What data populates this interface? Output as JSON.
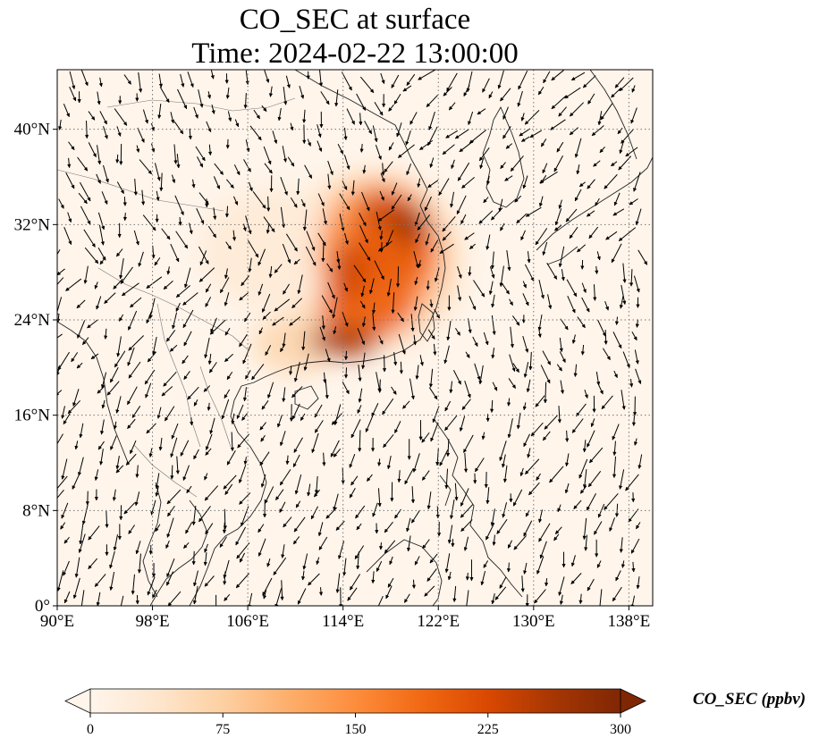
{
  "chart_data": {
    "type": "heatmap",
    "title_line1": "CO_SEC at surface",
    "title_line2": "Time: 2024-02-22 13:00:00",
    "variable": "CO_SEC",
    "units": "ppbv",
    "colorbar_label": "CO_SEC (ppbv)",
    "colorbar_extend": "both",
    "colormap": [
      "#fff5eb",
      "#fee6ce",
      "#fdd0a2",
      "#fdae6b",
      "#fd8d3c",
      "#f16913",
      "#d94801",
      "#a63603",
      "#7f2704"
    ],
    "vmin": 0,
    "vmax": 300,
    "colorbar_ticks": [
      {
        "value": 0,
        "label": "0"
      },
      {
        "value": 75,
        "label": "75"
      },
      {
        "value": 150,
        "label": "150"
      },
      {
        "value": 225,
        "label": "225"
      },
      {
        "value": 300,
        "label": "300"
      }
    ],
    "lon_range": [
      90,
      140
    ],
    "lat_range": [
      0,
      45
    ],
    "x_ticks": [
      {
        "value": 90,
        "label": "90°E"
      },
      {
        "value": 98,
        "label": "98°E"
      },
      {
        "value": 106,
        "label": "106°E"
      },
      {
        "value": 114,
        "label": "114°E"
      },
      {
        "value": 122,
        "label": "122°E"
      },
      {
        "value": 130,
        "label": "130°E"
      },
      {
        "value": 138,
        "label": "138°E"
      }
    ],
    "y_ticks": [
      {
        "value": 0,
        "label": "0°"
      },
      {
        "value": 8,
        "label": "8°N"
      },
      {
        "value": 16,
        "label": "16°N"
      },
      {
        "value": 24,
        "label": "24°N"
      },
      {
        "value": 32,
        "label": "32°N"
      },
      {
        "value": 40,
        "label": "40°N"
      }
    ],
    "gridlines": "dotted",
    "plume_regions": [
      {
        "lon": 116.5,
        "lat": 29.0,
        "rlon": 7.5,
        "rlat": 7.5,
        "value": 50
      },
      {
        "lon": 108.0,
        "lat": 30.0,
        "rlon": 6.0,
        "rlat": 5.0,
        "value": 25
      },
      {
        "lon": 110.0,
        "lat": 22.0,
        "rlon": 3.5,
        "rlat": 2.5,
        "value": 60
      },
      {
        "lon": 117.0,
        "lat": 29.5,
        "rlon": 5.2,
        "rlat": 6.0,
        "value": 140
      },
      {
        "lon": 118.0,
        "lat": 30.5,
        "rlon": 3.5,
        "rlat": 4.2,
        "value": 200
      },
      {
        "lon": 116.0,
        "lat": 25.0,
        "rlon": 4.0,
        "rlat": 2.5,
        "value": 190
      },
      {
        "lon": 114.0,
        "lat": 22.2,
        "rlon": 3.0,
        "rlat": 1.2,
        "value": 260
      },
      {
        "lon": 119.5,
        "lat": 32.0,
        "rlon": 1.5,
        "rlat": 1.5,
        "value": 280
      },
      {
        "lon": 117.0,
        "lat": 33.5,
        "rlon": 1.5,
        "rlat": 1.0,
        "value": 240
      },
      {
        "lon": 114.5,
        "lat": 28.0,
        "rlon": 1.5,
        "rlat": 2.5,
        "value": 230
      }
    ]
  }
}
